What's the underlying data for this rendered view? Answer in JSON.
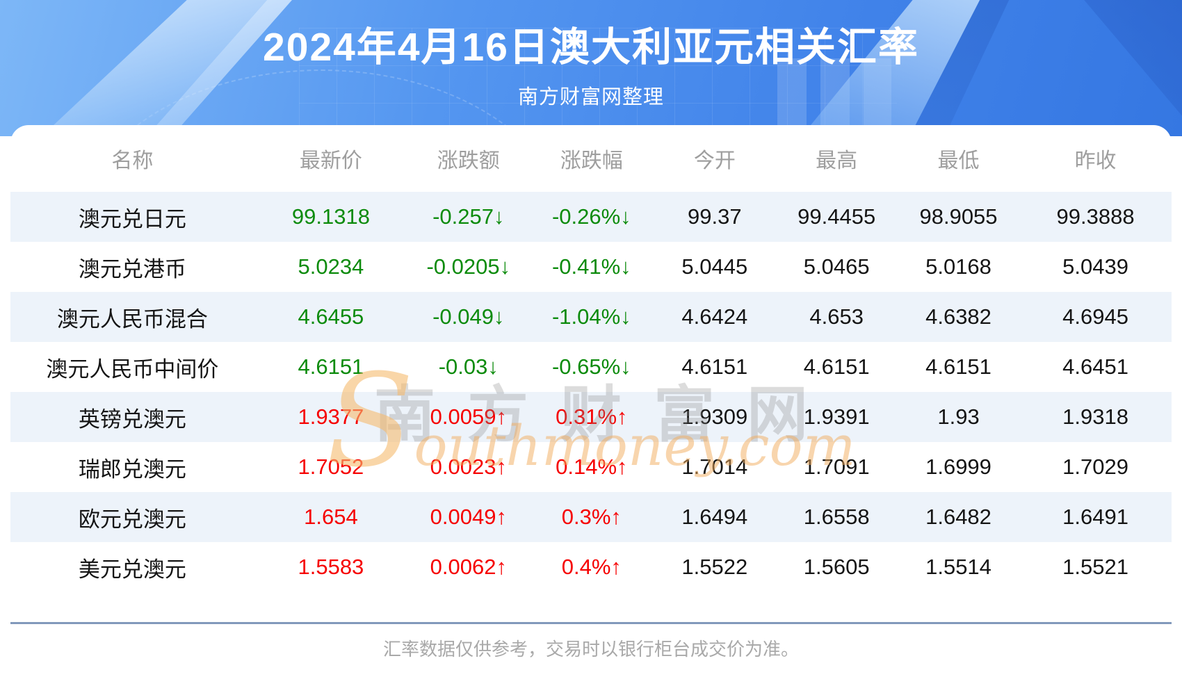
{
  "banner": {
    "title": "2024年4月16日澳大利亚元相关汇率",
    "subtitle": "南方财富网整理"
  },
  "table": {
    "columns": [
      "名称",
      "最新价",
      "涨跌额",
      "涨跌幅",
      "今开",
      "最高",
      "最低",
      "昨收"
    ],
    "rows": [
      {
        "name": "澳元兑日元",
        "last": "99.1318",
        "change": "-0.257↓",
        "change_pct": "-0.26%↓",
        "open": "99.37",
        "high": "99.4455",
        "low": "98.9055",
        "prev_close": "99.3888",
        "trend": "down"
      },
      {
        "name": "澳元兑港币",
        "last": "5.0234",
        "change": "-0.0205↓",
        "change_pct": "-0.41%↓",
        "open": "5.0445",
        "high": "5.0465",
        "low": "5.0168",
        "prev_close": "5.0439",
        "trend": "down"
      },
      {
        "name": "澳元人民币混合",
        "last": "4.6455",
        "change": "-0.049↓",
        "change_pct": "-1.04%↓",
        "open": "4.6424",
        "high": "4.653",
        "low": "4.6382",
        "prev_close": "4.6945",
        "trend": "down"
      },
      {
        "name": "澳元人民币中间价",
        "last": "4.6151",
        "change": "-0.03↓",
        "change_pct": "-0.65%↓",
        "open": "4.6151",
        "high": "4.6151",
        "low": "4.6151",
        "prev_close": "4.6451",
        "trend": "down"
      },
      {
        "name": "英镑兑澳元",
        "last": "1.9377",
        "change": "0.0059↑",
        "change_pct": "0.31%↑",
        "open": "1.9309",
        "high": "1.9391",
        "low": "1.93",
        "prev_close": "1.9318",
        "trend": "up"
      },
      {
        "name": "瑞郎兑澳元",
        "last": "1.7052",
        "change": "0.0023↑",
        "change_pct": "0.14%↑",
        "open": "1.7014",
        "high": "1.7091",
        "low": "1.6999",
        "prev_close": "1.7029",
        "trend": "up"
      },
      {
        "name": "欧元兑澳元",
        "last": "1.654",
        "change": "0.0049↑",
        "change_pct": "0.3%↑",
        "open": "1.6494",
        "high": "1.6558",
        "low": "1.6482",
        "prev_close": "1.6491",
        "trend": "up"
      },
      {
        "name": "美元兑澳元",
        "last": "1.5583",
        "change": "0.0062↑",
        "change_pct": "0.4%↑",
        "open": "1.5522",
        "high": "1.5605",
        "low": "1.5514",
        "prev_close": "1.5521",
        "trend": "up"
      }
    ]
  },
  "watermark": {
    "cn": "南方财富网",
    "en": "Southmoney.com"
  },
  "footer": {
    "note": "汇率数据仅供参考，交易时以银行柜台成交价为准。"
  },
  "colors": {
    "up": "#f60000",
    "down": "#0c8b0c",
    "stripe": "#edf3fa",
    "banner_blue": "#4082e9"
  }
}
